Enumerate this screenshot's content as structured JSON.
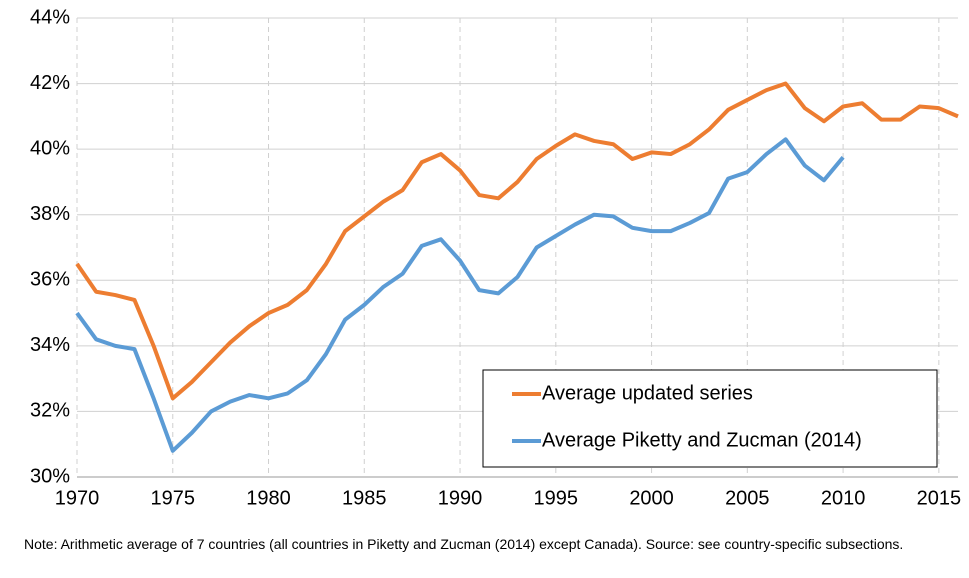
{
  "chart_data": {
    "type": "line",
    "x": [
      1970,
      1971,
      1972,
      1973,
      1974,
      1975,
      1976,
      1977,
      1978,
      1979,
      1980,
      1981,
      1982,
      1983,
      1984,
      1985,
      1986,
      1987,
      1988,
      1989,
      1990,
      1991,
      1992,
      1993,
      1994,
      1995,
      1996,
      1997,
      1998,
      1999,
      2000,
      2001,
      2002,
      2003,
      2004,
      2005,
      2006,
      2007,
      2008,
      2009,
      2010,
      2011,
      2012,
      2013,
      2014,
      2015,
      2016
    ],
    "series": [
      {
        "name": "Average updated series",
        "color": "#ED7D31",
        "values": [
          36.5,
          35.65,
          35.55,
          35.4,
          34.0,
          32.4,
          32.9,
          33.5,
          34.1,
          34.6,
          35.0,
          35.25,
          35.7,
          36.5,
          37.5,
          37.95,
          38.4,
          38.75,
          39.6,
          39.85,
          39.35,
          38.6,
          38.5,
          39.0,
          39.7,
          40.1,
          40.45,
          40.25,
          40.15,
          39.7,
          39.9,
          39.85,
          40.15,
          40.6,
          41.2,
          41.5,
          41.8,
          42.0,
          41.25,
          40.85,
          41.3,
          41.4,
          40.9,
          40.9,
          41.3,
          41.25,
          41.0
        ]
      },
      {
        "name": "Average Piketty and Zucman (2014)",
        "color": "#5B9BD5",
        "values": [
          35.0,
          34.2,
          34.0,
          33.9,
          32.4,
          30.8,
          31.35,
          32.0,
          32.3,
          32.5,
          32.4,
          32.55,
          32.95,
          33.75,
          34.8,
          35.25,
          35.8,
          36.2,
          37.05,
          37.25,
          36.6,
          35.7,
          35.6,
          36.1,
          37.0,
          37.35,
          37.7,
          38.0,
          37.95,
          37.6,
          37.5,
          37.5,
          37.75,
          38.05,
          39.1,
          39.3,
          39.85,
          40.3,
          39.5,
          39.05,
          39.75,
          null,
          null,
          null,
          null,
          null,
          null
        ]
      }
    ],
    "xlim": [
      1970,
      2016
    ],
    "xticks": [
      1970,
      1975,
      1980,
      1985,
      1990,
      1995,
      2000,
      2005,
      2010,
      2015
    ],
    "ylim": [
      30,
      44
    ],
    "yticks": [
      {
        "value": 30,
        "label": "30%"
      },
      {
        "value": 32,
        "label": "32%"
      },
      {
        "value": 34,
        "label": "34%"
      },
      {
        "value": 36,
        "label": "36%"
      },
      {
        "value": 38,
        "label": "38%"
      },
      {
        "value": 40,
        "label": "40%"
      },
      {
        "value": 42,
        "label": "42%"
      },
      {
        "value": 44,
        "label": "44%"
      }
    ],
    "grid": true,
    "legend": "lower right",
    "note": "Note: Arithmetic average of 7 countries (all countries in Piketty and Zucman (2014) except Canada). Source: see country-specific subsections."
  }
}
